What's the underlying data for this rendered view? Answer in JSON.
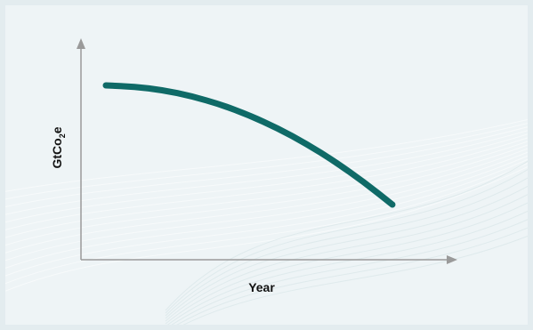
{
  "chart_data": {
    "type": "line",
    "title": "",
    "xlabel": "Year",
    "ylabel": {
      "main": "GtCo",
      "subscript": "2",
      "suffix": "e"
    },
    "grid": false,
    "legend": "none",
    "series": [
      {
        "color": "#0f6a67",
        "x": [
          0,
          0.1,
          0.2,
          0.3,
          0.4,
          0.5,
          0.6,
          0.7,
          0.8,
          0.9,
          1.0
        ],
        "y": [
          1.0,
          0.995,
          0.98,
          0.955,
          0.92,
          0.875,
          0.82,
          0.755,
          0.68,
          0.595,
          0.5
        ]
      }
    ],
    "colors": {
      "axis": "#9a9a9a",
      "line": "#0f6a67",
      "background": "#eef4f6",
      "frame": "#e3ecef"
    }
  }
}
